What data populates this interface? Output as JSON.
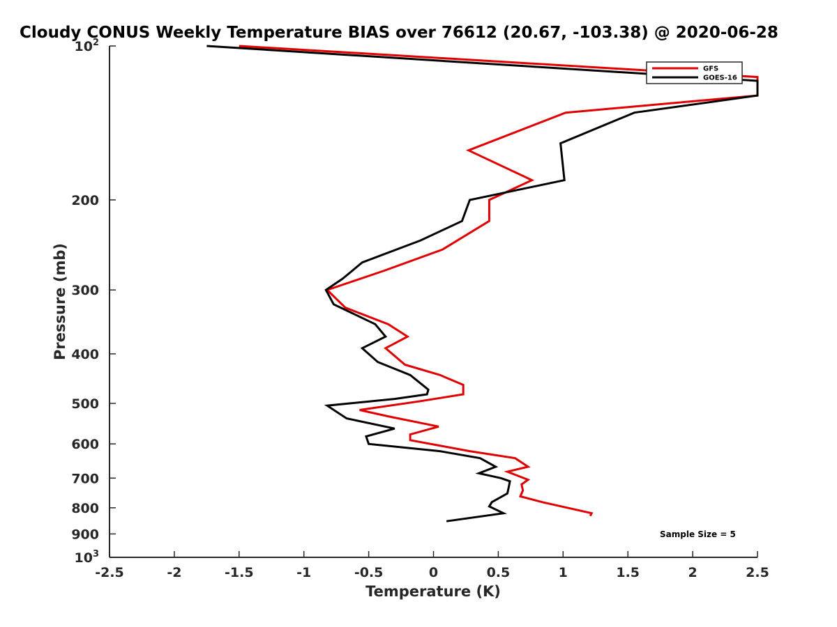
{
  "chart_data": {
    "type": "line",
    "title": "Cloudy CONUS Weekly Temperature BIAS over 76612 (20.67, -103.38) @ 2020-06-28",
    "xlabel": "Temperature (K)",
    "ylabel": "Pressure (mb)",
    "xlim": [
      -2.5,
      2.5
    ],
    "ylim": [
      100,
      1000
    ],
    "yscale": "log",
    "y_reversed": true,
    "grid": false,
    "legend_position": "top-right",
    "x_ticks": [
      "-2.5",
      "-2",
      "-1.5",
      "-1",
      "-0.5",
      "0",
      "0.5",
      "1",
      "1.5",
      "2",
      "2.5"
    ],
    "y_ticks": [
      {
        "value": 100,
        "base": "10",
        "exp": "2"
      },
      {
        "value": 200,
        "label": "200"
      },
      {
        "value": 300,
        "label": "300"
      },
      {
        "value": 400,
        "label": "400"
      },
      {
        "value": 500,
        "label": "500"
      },
      {
        "value": 600,
        "label": "600"
      },
      {
        "value": 700,
        "label": "700"
      },
      {
        "value": 800,
        "label": "800"
      },
      {
        "value": 900,
        "label": "900"
      },
      {
        "value": 1000,
        "base": "10",
        "exp": "3"
      }
    ],
    "annotation": "Sample Size = 5",
    "series": [
      {
        "name": "GFS",
        "color": "#e00000",
        "points": [
          {
            "x": -1.5,
            "y": 100
          },
          {
            "x": 2.5,
            "y": 115
          },
          {
            "x": 2.5,
            "y": 125
          },
          {
            "x": 1.02,
            "y": 135
          },
          {
            "x": 0.27,
            "y": 160
          },
          {
            "x": 0.76,
            "y": 183
          },
          {
            "x": 0.43,
            "y": 200
          },
          {
            "x": 0.43,
            "y": 220
          },
          {
            "x": 0.07,
            "y": 250
          },
          {
            "x": -0.38,
            "y": 275
          },
          {
            "x": -0.82,
            "y": 300
          },
          {
            "x": -0.68,
            "y": 325
          },
          {
            "x": -0.35,
            "y": 350
          },
          {
            "x": -0.2,
            "y": 370
          },
          {
            "x": -0.37,
            "y": 390
          },
          {
            "x": -0.22,
            "y": 420
          },
          {
            "x": 0.05,
            "y": 440
          },
          {
            "x": 0.23,
            "y": 460
          },
          {
            "x": 0.23,
            "y": 480
          },
          {
            "x": -0.1,
            "y": 495
          },
          {
            "x": -0.57,
            "y": 515
          },
          {
            "x": -0.35,
            "y": 530
          },
          {
            "x": 0.04,
            "y": 555
          },
          {
            "x": -0.18,
            "y": 575
          },
          {
            "x": -0.18,
            "y": 590
          },
          {
            "x": 0.28,
            "y": 620
          },
          {
            "x": 0.63,
            "y": 640
          },
          {
            "x": 0.73,
            "y": 665
          },
          {
            "x": 0.57,
            "y": 680
          },
          {
            "x": 0.73,
            "y": 705
          },
          {
            "x": 0.68,
            "y": 720
          },
          {
            "x": 0.69,
            "y": 740
          },
          {
            "x": 0.67,
            "y": 760
          },
          {
            "x": 0.84,
            "y": 780
          },
          {
            "x": 1.22,
            "y": 820
          },
          {
            "x": 1.21,
            "y": 830
          }
        ]
      },
      {
        "name": "GOES-16",
        "color": "#000000",
        "points": [
          {
            "x": -1.75,
            "y": 100
          },
          {
            "x": 2.5,
            "y": 117
          },
          {
            "x": 2.5,
            "y": 125
          },
          {
            "x": 1.55,
            "y": 135
          },
          {
            "x": 0.98,
            "y": 155
          },
          {
            "x": 1.01,
            "y": 183
          },
          {
            "x": 0.28,
            "y": 200
          },
          {
            "x": 0.22,
            "y": 220
          },
          {
            "x": -0.1,
            "y": 240
          },
          {
            "x": -0.55,
            "y": 265
          },
          {
            "x": -0.7,
            "y": 285
          },
          {
            "x": -0.83,
            "y": 300
          },
          {
            "x": -0.77,
            "y": 320
          },
          {
            "x": -0.45,
            "y": 350
          },
          {
            "x": -0.37,
            "y": 370
          },
          {
            "x": -0.55,
            "y": 390
          },
          {
            "x": -0.43,
            "y": 415
          },
          {
            "x": -0.18,
            "y": 440
          },
          {
            "x": -0.04,
            "y": 470
          },
          {
            "x": -0.05,
            "y": 480
          },
          {
            "x": -0.3,
            "y": 490
          },
          {
            "x": -0.82,
            "y": 505
          },
          {
            "x": -0.67,
            "y": 535
          },
          {
            "x": -0.3,
            "y": 560
          },
          {
            "x": -0.52,
            "y": 580
          },
          {
            "x": -0.5,
            "y": 600
          },
          {
            "x": 0.05,
            "y": 620
          },
          {
            "x": 0.36,
            "y": 640
          },
          {
            "x": 0.48,
            "y": 665
          },
          {
            "x": 0.35,
            "y": 685
          },
          {
            "x": 0.52,
            "y": 700
          },
          {
            "x": 0.59,
            "y": 710
          },
          {
            "x": 0.58,
            "y": 730
          },
          {
            "x": 0.57,
            "y": 750
          },
          {
            "x": 0.45,
            "y": 780
          },
          {
            "x": 0.43,
            "y": 795
          },
          {
            "x": 0.54,
            "y": 820
          },
          {
            "x": 0.1,
            "y": 850
          }
        ]
      }
    ]
  }
}
